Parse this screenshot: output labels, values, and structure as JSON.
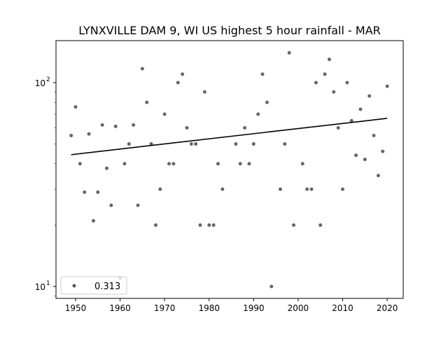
{
  "chart_data": {
    "type": "scatter",
    "title": "LYNXVILLE DAM 9, WI US highest 5 hour rainfall - MAR",
    "xlabel": "",
    "ylabel": "",
    "yscale": "log",
    "xlim": [
      1945.6,
      2023.6
    ],
    "ylim": [
      8.74,
      160.7
    ],
    "xticks": [
      1950,
      1960,
      1970,
      1980,
      1990,
      2000,
      2010,
      2020
    ],
    "yticks": [
      {
        "value": 10,
        "label": "10",
        "exp": "1"
      },
      {
        "value": 100,
        "label": "10",
        "exp": "2"
      }
    ],
    "grid": false,
    "legend": {
      "placement": "bottom-left",
      "entries": [
        {
          "label": "0.313"
        }
      ]
    },
    "point_color": "#555555",
    "line_color": "#000000",
    "series": [
      {
        "name": "0.313",
        "x": [
          1949,
          1950,
          1951,
          1952,
          1953,
          1954,
          1955,
          1956,
          1957,
          1958,
          1959,
          1960,
          1961,
          1962,
          1963,
          1964,
          1965,
          1966,
          1967,
          1968,
          1969,
          1970,
          1971,
          1972,
          1973,
          1974,
          1975,
          1976,
          1977,
          1978,
          1979,
          1980,
          1981,
          1982,
          1983,
          1986,
          1987,
          1988,
          1989,
          1990,
          1991,
          1992,
          1993,
          1994,
          1996,
          1997,
          1998,
          1999,
          2001,
          2002,
          2003,
          2004,
          2005,
          2006,
          2007,
          2008,
          2009,
          2010,
          2011,
          2012,
          2013,
          2014,
          2015,
          2016,
          2017,
          2018,
          2019,
          2020
        ],
        "y": [
          55,
          76,
          40,
          29,
          56,
          21,
          29,
          62,
          38,
          25,
          61,
          11,
          40,
          50,
          62,
          25,
          117,
          80,
          50,
          20,
          30,
          70,
          40,
          40,
          100,
          110,
          60,
          50,
          50,
          20,
          90,
          20,
          20,
          40,
          30,
          50,
          40,
          60,
          40,
          50,
          70,
          110,
          80,
          10,
          30,
          50,
          140,
          20,
          40,
          30,
          30,
          100,
          20,
          110,
          130,
          90,
          60,
          30,
          100,
          65,
          44,
          74,
          42,
          86,
          55,
          35,
          46,
          96
        ]
      }
    ],
    "trend": {
      "x": [
        1949,
        2020
      ],
      "y": [
        44.3,
        66.8
      ]
    }
  }
}
